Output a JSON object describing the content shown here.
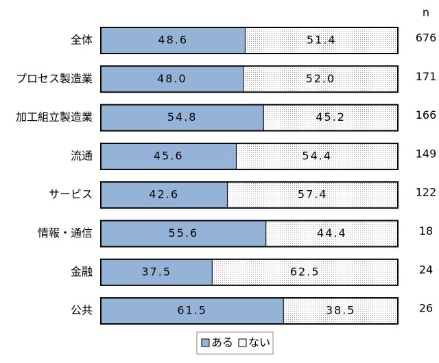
{
  "chart_data": {
    "type": "bar",
    "orientation": "horizontal",
    "stacked": true,
    "categories": [
      "全体",
      "プロセス製造業",
      "加工組立製造業",
      "流通",
      "サービス",
      "情報・通信",
      "金融",
      "公共"
    ],
    "xlim": [
      0,
      100
    ],
    "series": [
      {
        "name": "ある",
        "color": "#95b3d7",
        "values": [
          48.6,
          48.0,
          54.8,
          45.6,
          42.6,
          55.6,
          37.5,
          61.5
        ],
        "value_labels": [
          "48.6",
          "48.0",
          "54.8",
          "45.6",
          "42.6",
          "55.6",
          "37.5",
          "61.5"
        ]
      },
      {
        "name": "ない",
        "color": "#ffffff",
        "pattern": "dots",
        "values": [
          51.4,
          52.0,
          45.2,
          54.4,
          57.4,
          44.4,
          62.5,
          38.5
        ],
        "value_labels": [
          "51.4",
          "52.0",
          "45.2",
          "54.4",
          "57.4",
          "44.4",
          "62.5",
          "38.5"
        ]
      }
    ],
    "n_label": "n",
    "n_values": [
      676,
      171,
      166,
      149,
      122,
      18,
      24,
      26
    ],
    "legend": "bottom"
  }
}
